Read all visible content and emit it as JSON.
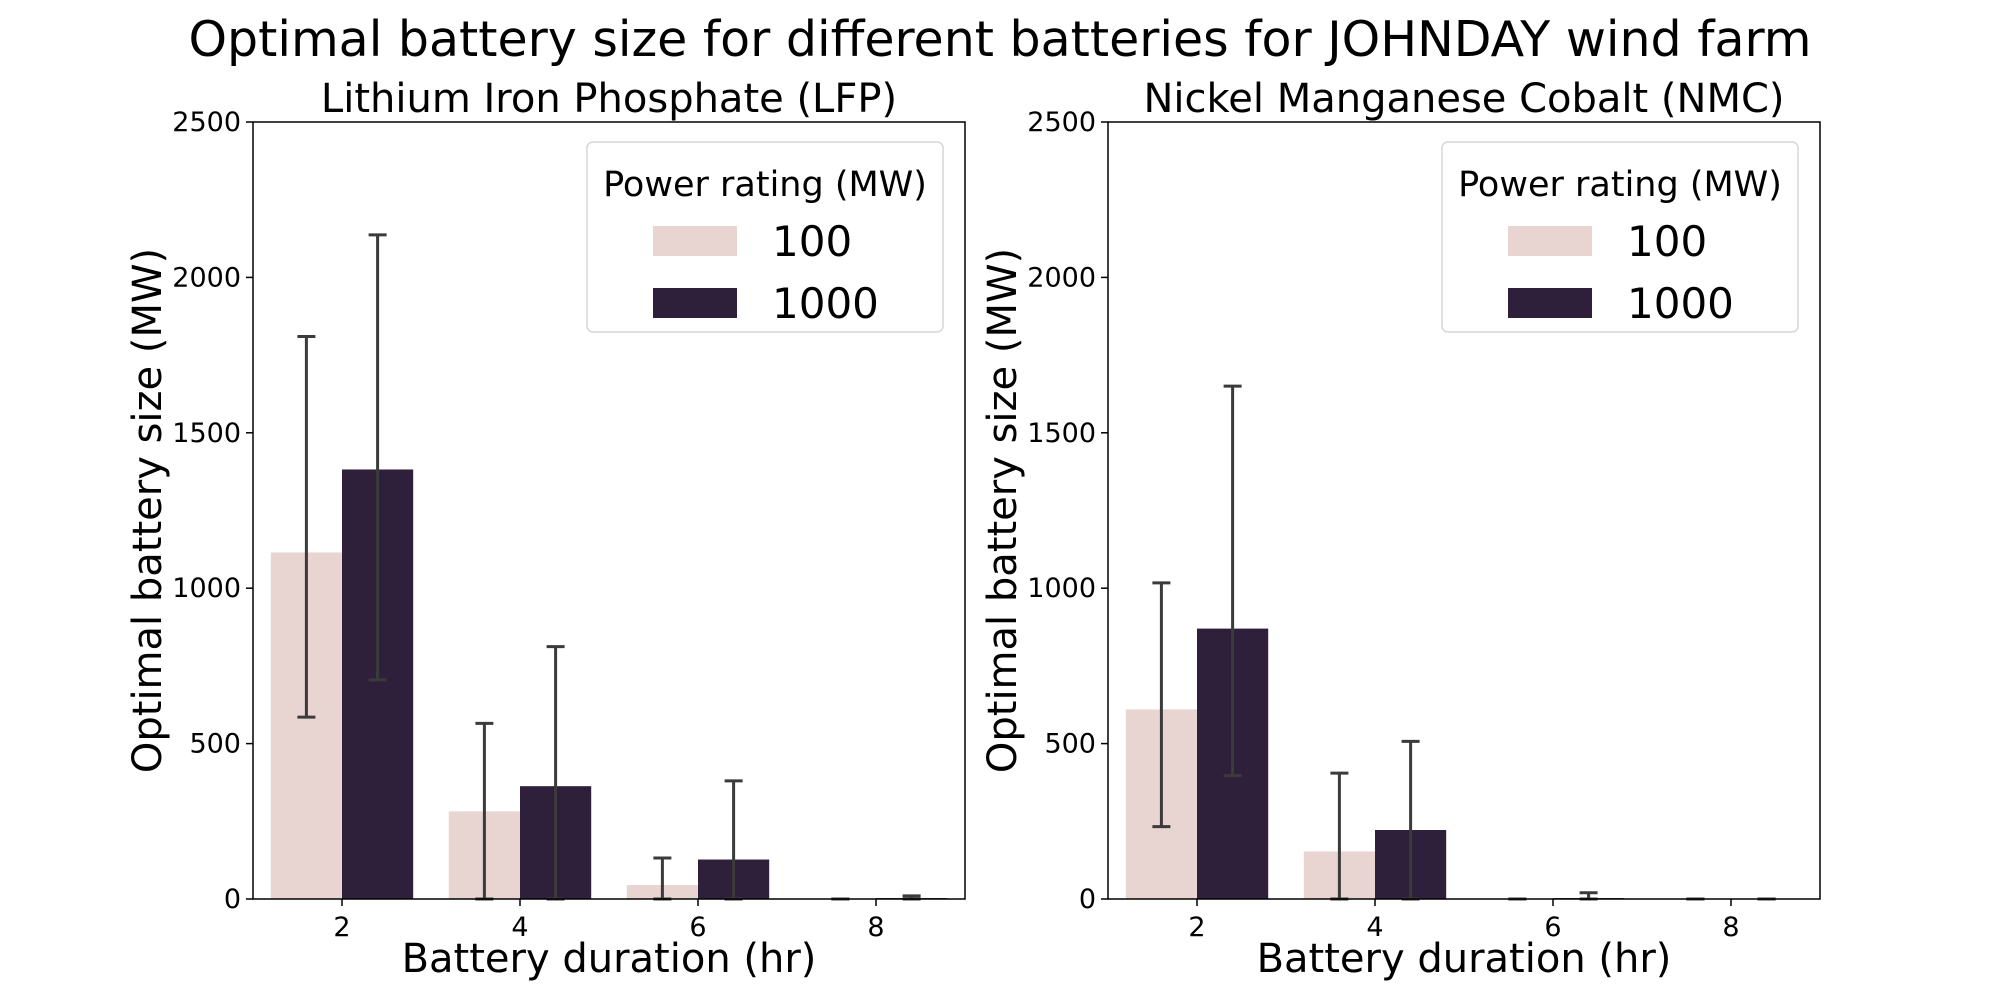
{
  "figure": {
    "title": "Optimal battery size for different batteries for JOHNDAY wind farm"
  },
  "colors": {
    "series_100": "#e8d5d2",
    "series_1000": "#2e1f3a",
    "errorbar": "#3b3b3b",
    "axis": "#000000",
    "legend_border": "#d6d6d6"
  },
  "chart_data": [
    {
      "type": "bar",
      "title": "Lithium Iron Phosphate (LFP)",
      "xlabel": "Battery duration (hr)",
      "ylabel": "Optimal battery size (MW)",
      "ylim": [
        0,
        2500
      ],
      "yticks": [
        "0",
        "500",
        "1000",
        "1500",
        "2000",
        "2500"
      ],
      "categories": [
        "2",
        "4",
        "6",
        "8"
      ],
      "legend": {
        "title": "Power rating (MW)",
        "position": "top-right"
      },
      "series": [
        {
          "name": "100",
          "values": [
            1115,
            282,
            45,
            0
          ],
          "err_low": [
            585,
            0,
            0,
            0
          ],
          "err_high": [
            1810,
            565,
            132,
            0
          ]
        },
        {
          "name": "1000",
          "values": [
            1382,
            363,
            127,
            3
          ],
          "err_low": [
            705,
            0,
            0,
            0
          ],
          "err_high": [
            2137,
            812,
            380,
            10
          ]
        }
      ]
    },
    {
      "type": "bar",
      "title": "Nickel Manganese Cobalt (NMC)",
      "xlabel": "Battery duration (hr)",
      "ylabel": "Optimal battery size (MW)",
      "ylim": [
        0,
        2500
      ],
      "yticks": [
        "0",
        "500",
        "1000",
        "1500",
        "2000",
        "2500"
      ],
      "categories": [
        "2",
        "4",
        "6",
        "8"
      ],
      "legend": {
        "title": "Power rating (MW)",
        "position": "top-right"
      },
      "series": [
        {
          "name": "100",
          "values": [
            610,
            153,
            0,
            0
          ],
          "err_low": [
            233,
            0,
            0,
            0
          ],
          "err_high": [
            1017,
            405,
            0,
            0
          ]
        },
        {
          "name": "1000",
          "values": [
            870,
            222,
            3,
            0
          ],
          "err_low": [
            397,
            0,
            0,
            0
          ],
          "err_high": [
            1650,
            507,
            20,
            0
          ]
        }
      ]
    }
  ]
}
